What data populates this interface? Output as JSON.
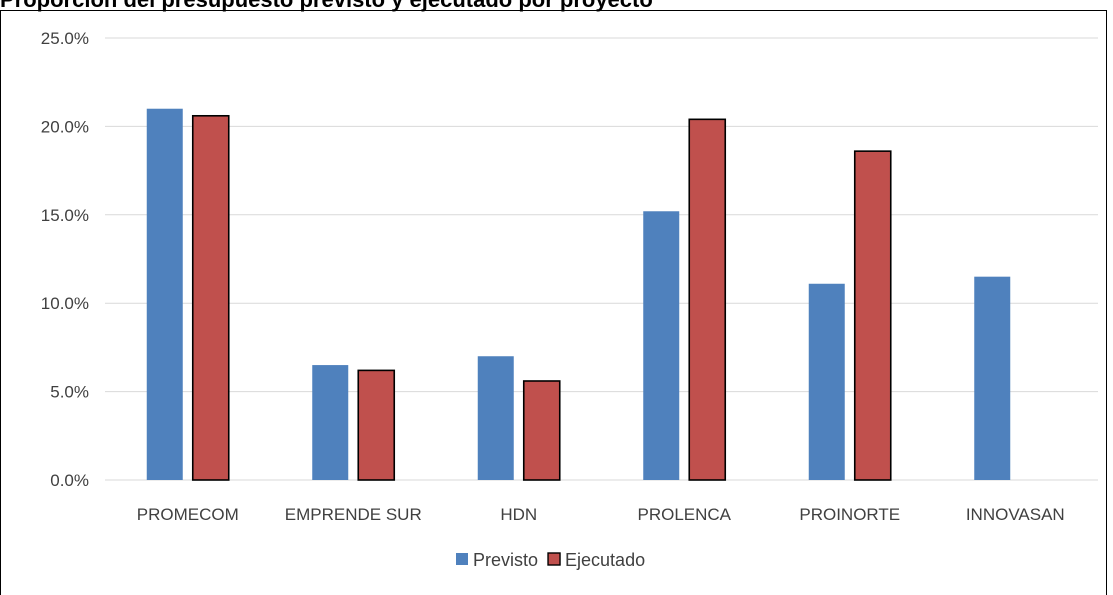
{
  "chart_data": {
    "type": "bar",
    "title": "Proporción del presupuesto previsto y ejecutado por proyecto",
    "categories": [
      "PROMECOM",
      "EMPRENDE SUR",
      "HDN",
      "PROLENCA",
      "PROINORTE",
      "INNOVASAN"
    ],
    "series": [
      {
        "name": "Previsto",
        "values": [
          21.0,
          6.5,
          7.0,
          15.2,
          11.1,
          11.5
        ]
      },
      {
        "name": "Ejecutado",
        "values": [
          20.6,
          6.2,
          5.6,
          20.4,
          18.6,
          null
        ]
      }
    ],
    "ylim": [
      0,
      25
    ],
    "yticks": [
      "0.0%",
      "5.0%",
      "10.0%",
      "15.0%",
      "20.0%",
      "25.0%"
    ],
    "grid": true,
    "legend": "bottom",
    "colors": {
      "Previsto": "#4F81BD",
      "Ejecutado": "#C0504D",
      "grid": "#D9D9D9"
    }
  }
}
